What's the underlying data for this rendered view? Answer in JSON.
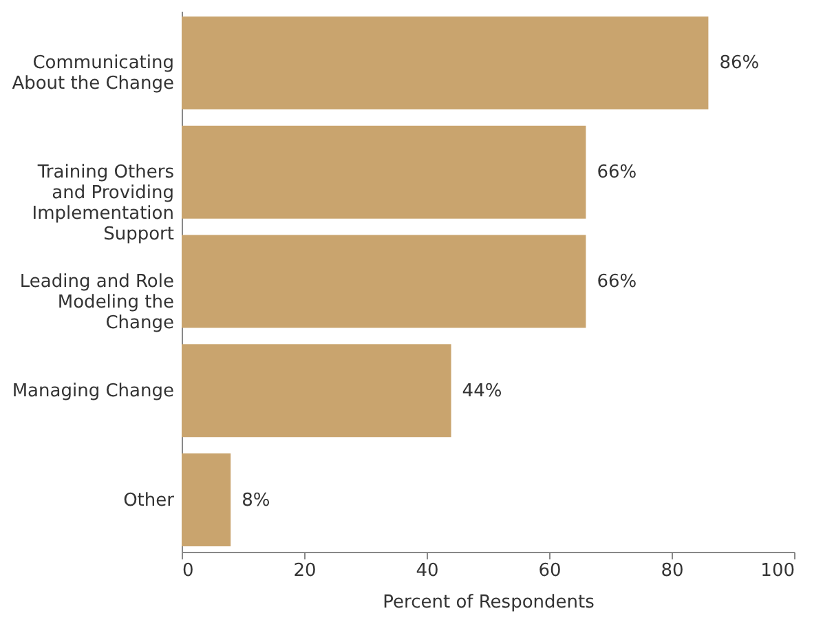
{
  "chart_data": {
    "type": "bar",
    "orientation": "horizontal",
    "xlabel": "Percent of Respondents",
    "categories": [
      "Communicating About the Change",
      "Training Others and Providing Implementation Support",
      "Leading and Role Modeling the Change",
      "Managing Change",
      "Other"
    ],
    "values": [
      86,
      66,
      66,
      44,
      8
    ],
    "value_labels": [
      "86%",
      "66%",
      "66%",
      "44%",
      "8%"
    ],
    "color": "#c9a46e",
    "xlim": [
      0,
      100
    ],
    "xticks": [
      0,
      20,
      40,
      60,
      80,
      100
    ],
    "grid": false
  }
}
